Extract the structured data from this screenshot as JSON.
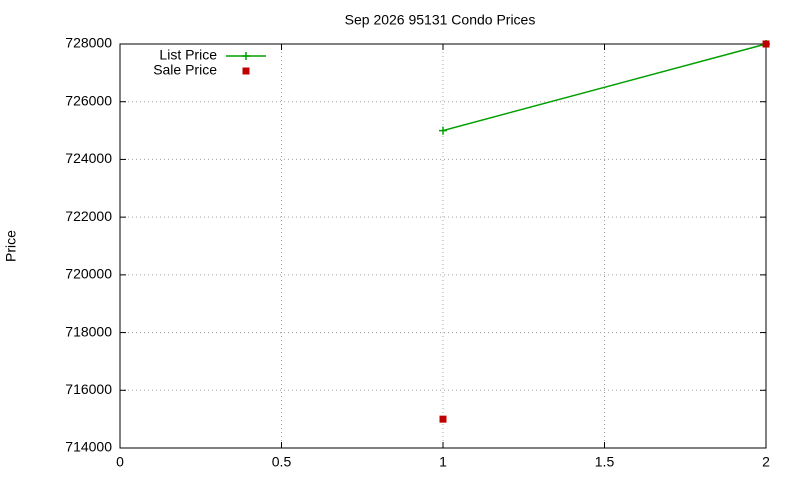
{
  "chart_data": {
    "type": "line",
    "title": "Sep 2026 95131 Condo Prices",
    "y_label": "Price",
    "x": [
      1,
      2
    ],
    "series": [
      {
        "name": "List Price",
        "color": "#00a000",
        "line": true,
        "marker": "plus",
        "values": [
          725000,
          728000
        ]
      },
      {
        "name": "Sale Price",
        "color": "#c00000",
        "line": false,
        "marker": "square",
        "values": [
          715000,
          728000
        ]
      }
    ],
    "xlim": [
      0,
      2
    ],
    "xticks": [
      0,
      0.5,
      1,
      1.5,
      2
    ],
    "ylim": [
      714000,
      728000
    ],
    "yticks": [
      714000,
      716000,
      718000,
      720000,
      722000,
      724000,
      726000,
      728000
    ],
    "grid": true,
    "legend": "top-left"
  }
}
